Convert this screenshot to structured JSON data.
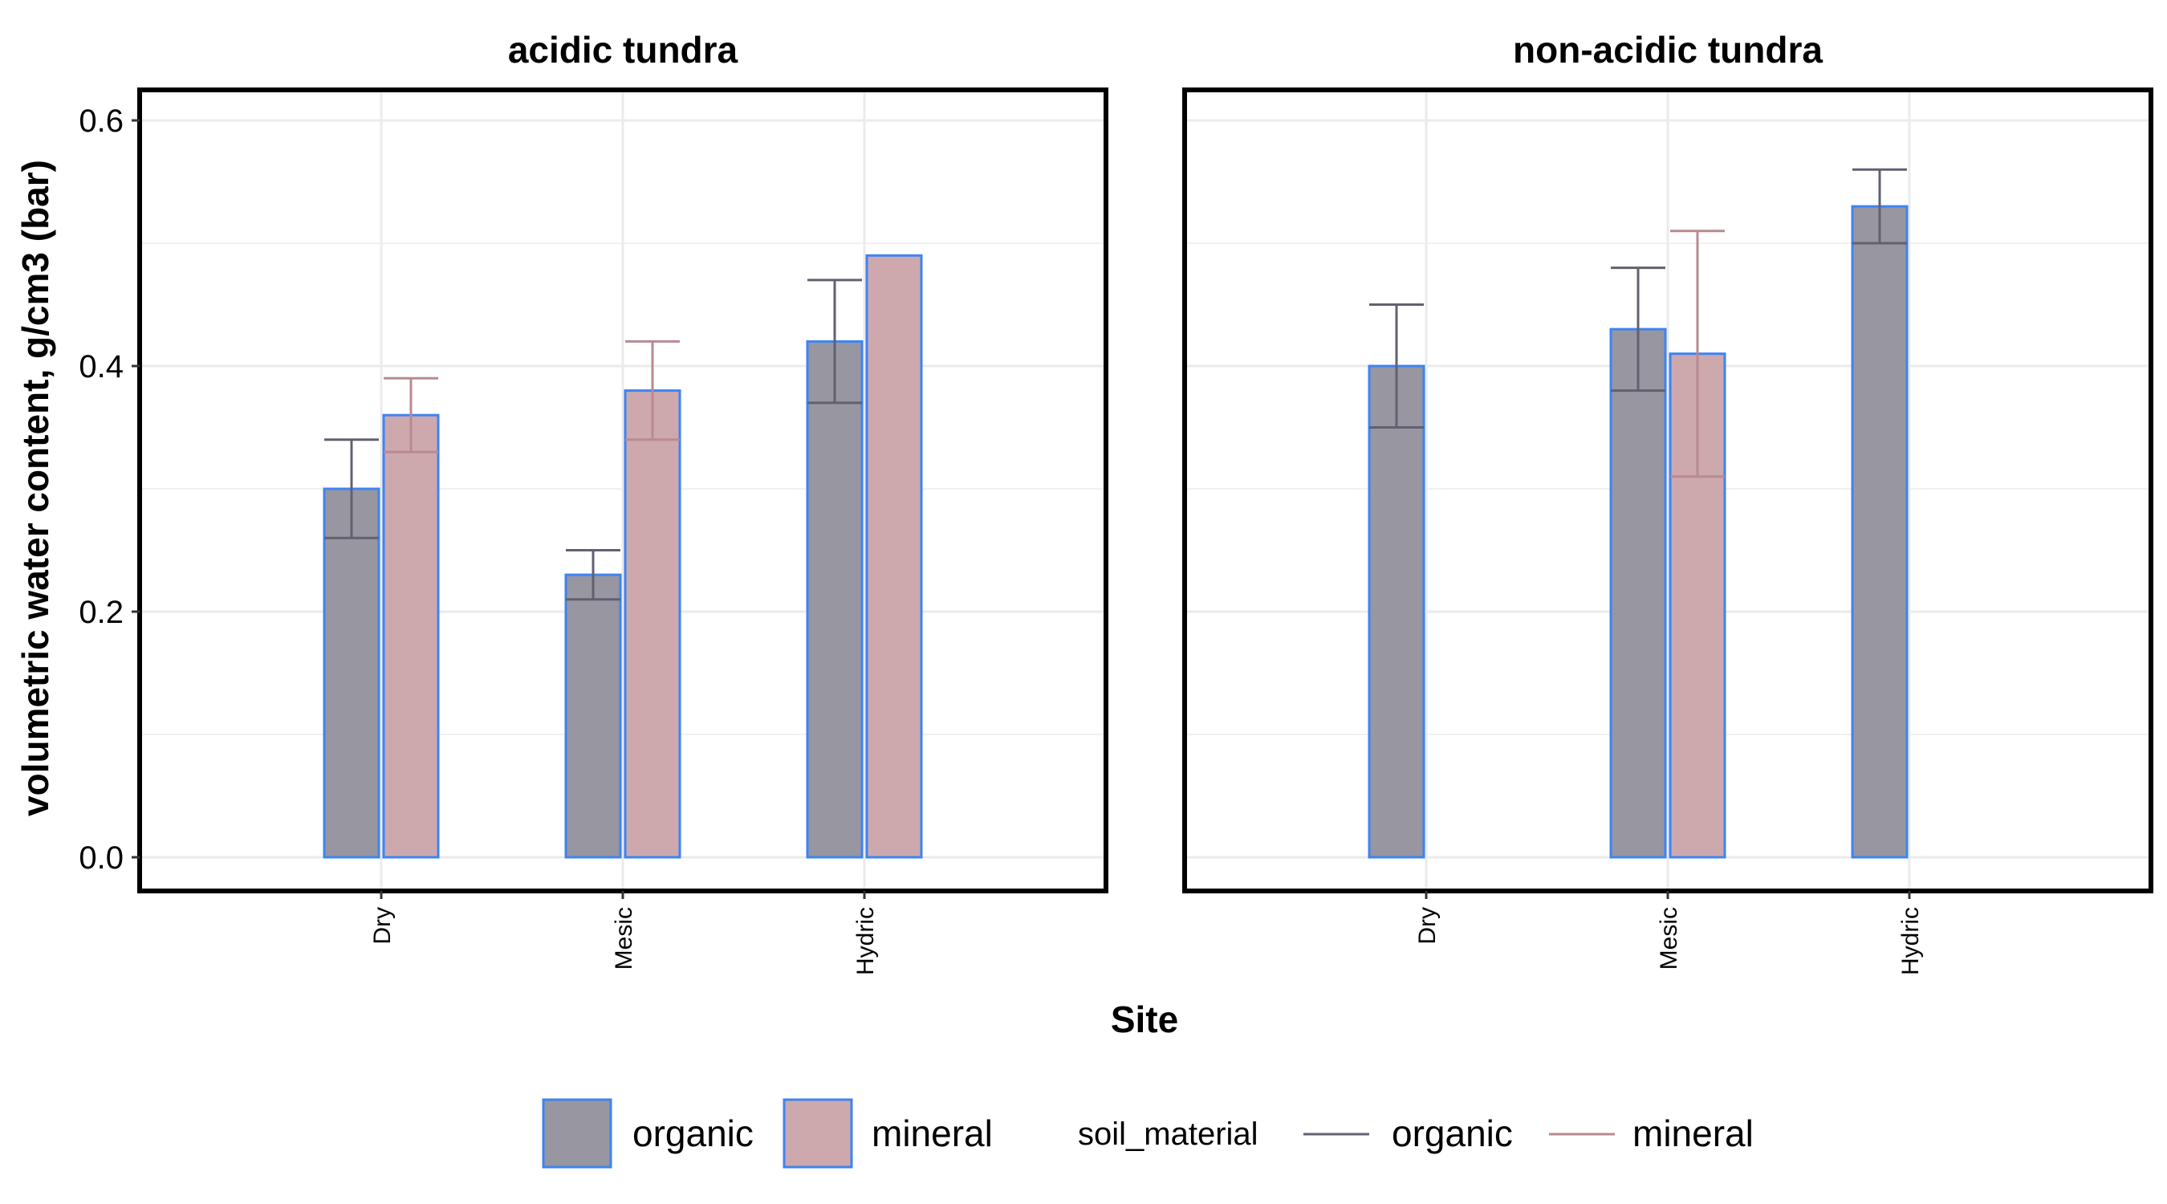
{
  "chart_data": {
    "type": "bar",
    "xlabel": "Site",
    "ylabel": "volumetric water content, g/cm3 (bar)",
    "ylim": [
      -0.06,
      0.63
    ],
    "y_ticks": [
      "0.0",
      "0.2",
      "0.4",
      "0.6"
    ],
    "y_tick_values": [
      0.0,
      0.2,
      0.4,
      0.6
    ],
    "categories": [
      "Dry",
      "Mesic",
      "Hydric"
    ],
    "grid": true,
    "legend_position": "bottom",
    "colors": {
      "organic_fill": "#9896a0",
      "mineral_fill": "#cda9ae",
      "bar_outline": "#3d84f2",
      "organic_err": "#626070",
      "mineral_err": "#b88a92",
      "grid": "#ebebeb",
      "panel_border": "#000000"
    },
    "facets": [
      {
        "title": "acidic tundra",
        "bars": [
          {
            "category": "Dry",
            "material": "organic",
            "value": 0.3,
            "err_low": 0.26,
            "err_high": 0.34
          },
          {
            "category": "Dry",
            "material": "mineral",
            "value": 0.36,
            "err_low": 0.33,
            "err_high": 0.39
          },
          {
            "category": "Mesic",
            "material": "organic",
            "value": 0.23,
            "err_low": 0.21,
            "err_high": 0.25
          },
          {
            "category": "Mesic",
            "material": "mineral",
            "value": 0.38,
            "err_low": 0.34,
            "err_high": 0.42
          },
          {
            "category": "Hydric",
            "material": "organic",
            "value": 0.42,
            "err_low": 0.37,
            "err_high": 0.47
          },
          {
            "category": "Hydric",
            "material": "mineral",
            "value": 0.49,
            "err_low": null,
            "err_high": null
          }
        ]
      },
      {
        "title": "non-acidic tundra",
        "bars": [
          {
            "category": "Dry",
            "material": "organic",
            "value": 0.4,
            "err_low": 0.35,
            "err_high": 0.45
          },
          {
            "category": "Mesic",
            "material": "organic",
            "value": 0.43,
            "err_low": 0.38,
            "err_high": 0.48
          },
          {
            "category": "Mesic",
            "material": "mineral",
            "value": 0.41,
            "err_low": 0.31,
            "err_high": 0.51
          },
          {
            "category": "Hydric",
            "material": "organic",
            "value": 0.53,
            "err_low": 0.5,
            "err_high": 0.56
          }
        ]
      }
    ]
  },
  "legend": {
    "fill_items": [
      {
        "key": "organic",
        "label": "organic"
      },
      {
        "key": "mineral",
        "label": "mineral"
      }
    ],
    "line_title": "soil_material",
    "line_items": [
      {
        "key": "organic",
        "label": "organic"
      },
      {
        "key": "mineral",
        "label": "mineral"
      }
    ]
  }
}
